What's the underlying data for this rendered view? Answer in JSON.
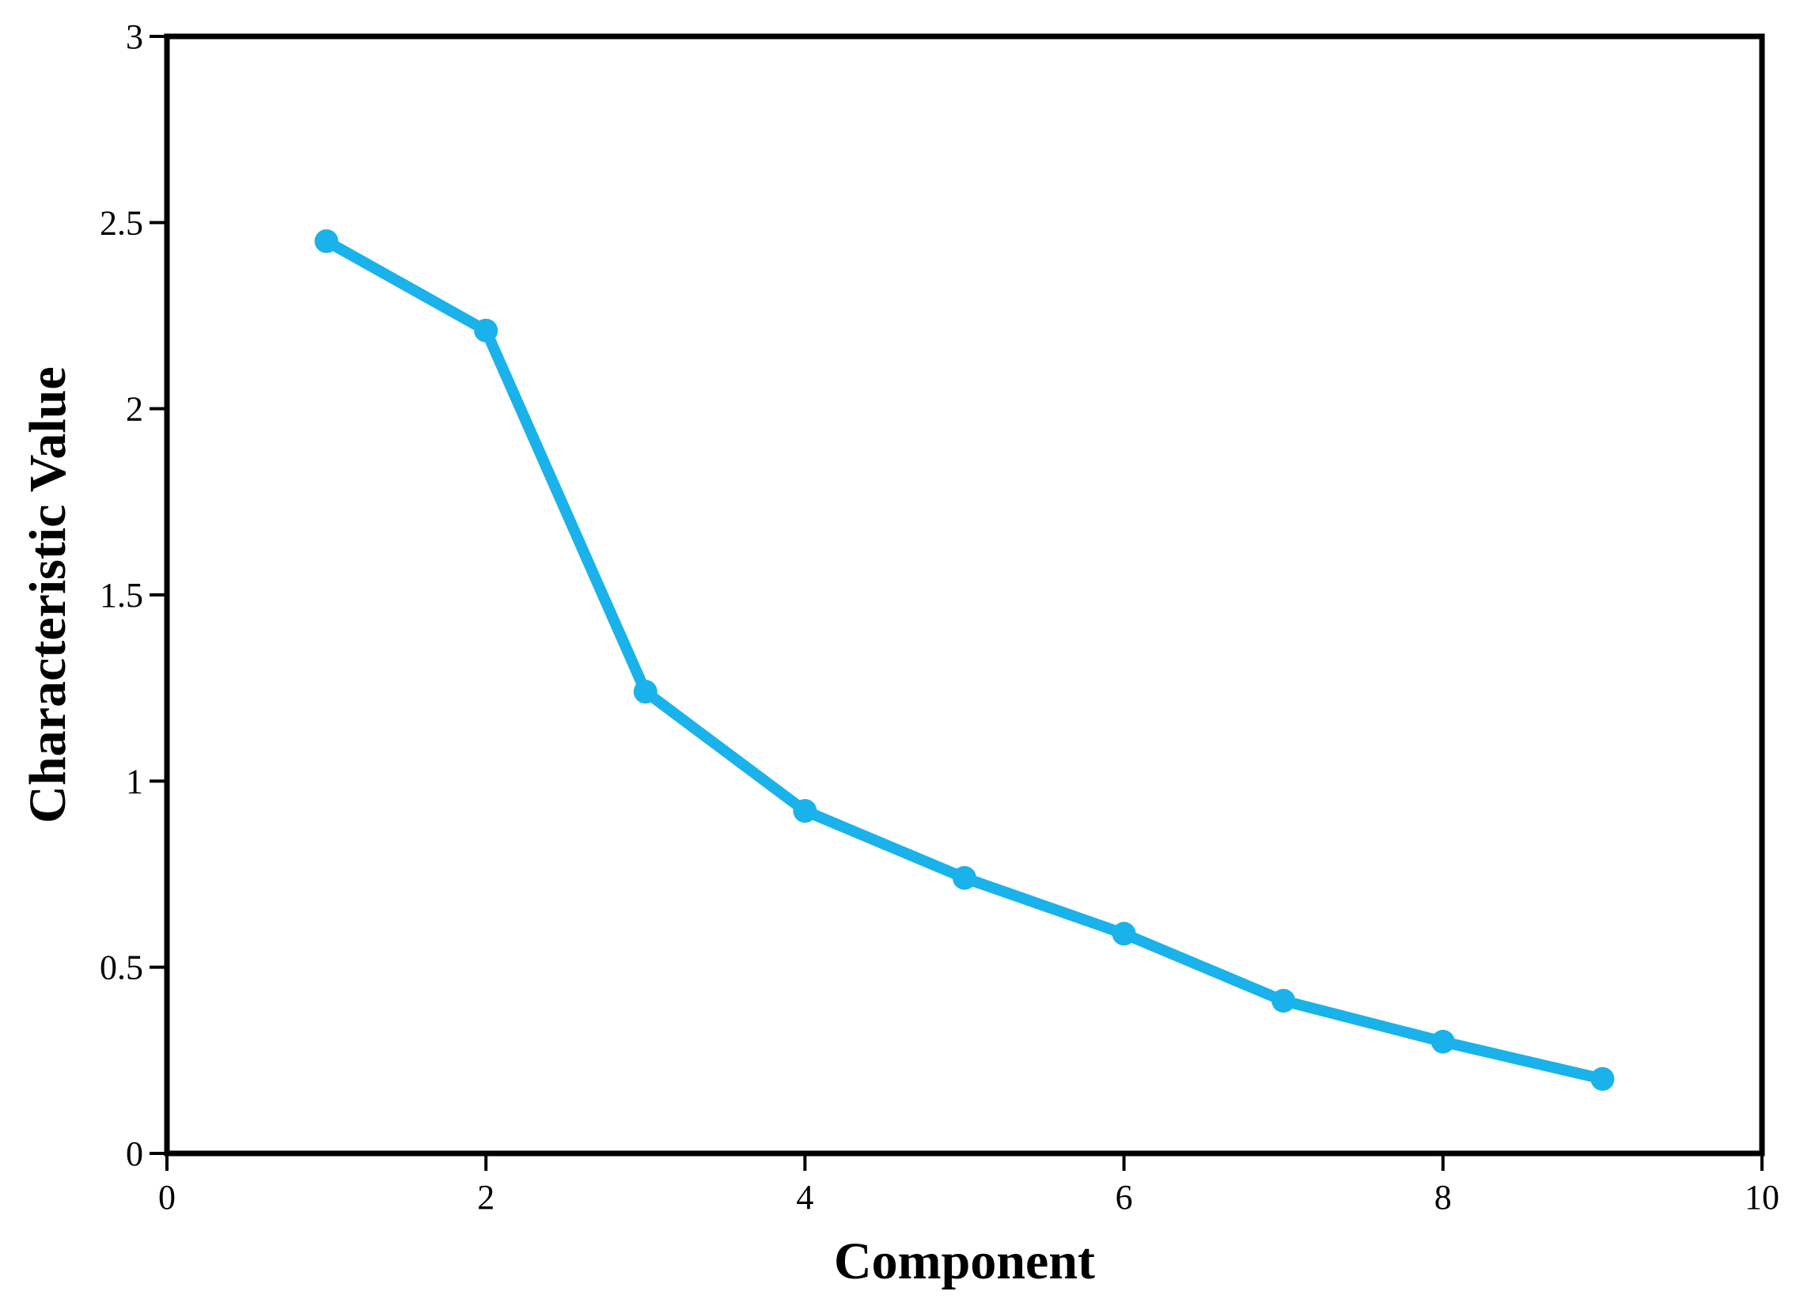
{
  "chart_data": {
    "type": "line",
    "title": "",
    "xlabel": "Component",
    "ylabel": "Characteristic Value",
    "xlim": [
      0,
      10
    ],
    "ylim": [
      0,
      3
    ],
    "x_ticks": [
      0,
      2,
      4,
      6,
      8,
      10
    ],
    "y_ticks": [
      0,
      0.5,
      1,
      1.5,
      2,
      2.5,
      3
    ],
    "x_tick_labels": [
      "0",
      "2",
      "4",
      "6",
      "8",
      "10"
    ],
    "y_tick_labels": [
      "0",
      "0.5",
      "1",
      "1.5",
      "2",
      "2.5",
      "3"
    ],
    "grid": false,
    "legend": "none",
    "series": [
      {
        "color": "#1ab2ea",
        "x": [
          1,
          2,
          3,
          4,
          5,
          6,
          7,
          8,
          9
        ],
        "y": [
          2.45,
          2.21,
          1.24,
          0.92,
          0.74,
          0.59,
          0.41,
          0.3,
          0.2
        ]
      }
    ]
  }
}
